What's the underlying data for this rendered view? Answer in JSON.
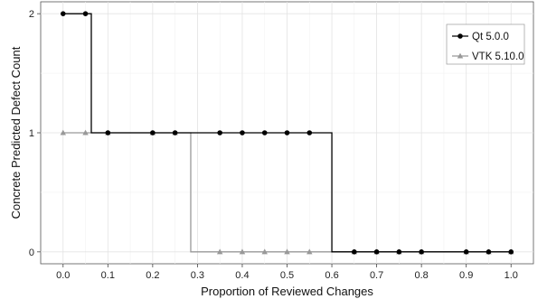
{
  "chart_data": {
    "type": "line",
    "title": "",
    "xlabel": "Proportion of Reviewed Changes",
    "ylabel": "Concrete Predicted Defect Count",
    "xlim": [
      -0.05,
      1.05
    ],
    "ylim": [
      -0.1,
      2.1
    ],
    "x_ticks": [
      "0.0",
      "0.1",
      "0.2",
      "0.3",
      "0.4",
      "0.5",
      "0.6",
      "0.7",
      "0.8",
      "0.9",
      "1.0"
    ],
    "y_ticks": [
      "0",
      "1",
      "2"
    ],
    "grid": true,
    "legend_position": "top-right",
    "series": [
      {
        "name": "Qt 5.0.0",
        "color": "#000000",
        "marker": "circle",
        "step_path": [
          [
            0.0,
            2
          ],
          [
            0.063,
            2
          ],
          [
            0.063,
            1
          ],
          [
            0.6,
            1
          ],
          [
            0.6,
            0
          ],
          [
            1.0,
            0
          ]
        ],
        "points": [
          [
            0.0,
            2
          ],
          [
            0.05,
            2
          ],
          [
            0.1,
            1
          ],
          [
            0.2,
            1
          ],
          [
            0.25,
            1
          ],
          [
            0.35,
            1
          ],
          [
            0.4,
            1
          ],
          [
            0.45,
            1
          ],
          [
            0.5,
            1
          ],
          [
            0.55,
            1
          ],
          [
            0.65,
            0
          ],
          [
            0.7,
            0
          ],
          [
            0.75,
            0
          ],
          [
            0.8,
            0
          ],
          [
            0.9,
            0
          ],
          [
            0.95,
            0
          ],
          [
            1.0,
            0
          ]
        ]
      },
      {
        "name": "VTK 5.10.0",
        "color": "#999999",
        "marker": "triangle",
        "step_path": [
          [
            0.0,
            1
          ],
          [
            0.285,
            1
          ],
          [
            0.285,
            0
          ],
          [
            1.0,
            0
          ]
        ],
        "points": [
          [
            0.0,
            1
          ],
          [
            0.05,
            1
          ],
          [
            0.1,
            1
          ],
          [
            0.2,
            1
          ],
          [
            0.25,
            1
          ],
          [
            0.35,
            0
          ],
          [
            0.4,
            0
          ],
          [
            0.45,
            0
          ],
          [
            0.5,
            0
          ],
          [
            0.55,
            0
          ],
          [
            0.65,
            0
          ],
          [
            0.7,
            0
          ],
          [
            0.75,
            0
          ],
          [
            0.8,
            0
          ],
          [
            0.9,
            0
          ],
          [
            0.95,
            0
          ],
          [
            1.0,
            0
          ]
        ]
      }
    ]
  }
}
